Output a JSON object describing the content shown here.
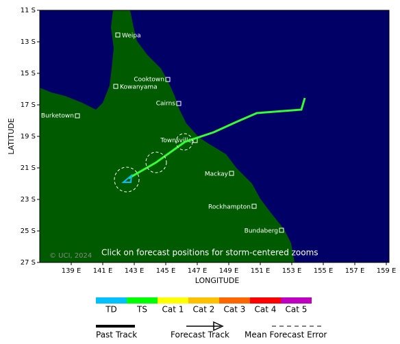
{
  "map": {
    "lat_ticks": [
      "11 S",
      "13 S",
      "15 S",
      "17 S",
      "19 S",
      "21 S",
      "23 S",
      "25 S",
      "27 S"
    ],
    "lon_ticks": [
      "139 E",
      "141 E",
      "143 E",
      "145 E",
      "147 E",
      "149 E",
      "151 E",
      "153 E",
      "155 E",
      "157 E",
      "159 E"
    ],
    "x_label": "LONGITUDE",
    "y_label": "LATITUDE",
    "places": [
      "Weipa",
      "Cooktown",
      "Kowanyama",
      "Cairns",
      "Burketown",
      "Townsville",
      "Mackay",
      "Rockhampton",
      "Bundaberg"
    ],
    "copyright": "© UCI, 2024",
    "note": "Click on forecast positions for storm-centered zooms"
  },
  "legend": {
    "intensity": [
      {
        "label": "TD",
        "color": "#00c0ff"
      },
      {
        "label": "TS",
        "color": "#00ff00"
      },
      {
        "label": "Cat 1",
        "color": "#ffff00"
      },
      {
        "label": "Cat 2",
        "color": "#ffc000"
      },
      {
        "label": "Cat 3",
        "color": "#ff6600"
      },
      {
        "label": "Cat 4",
        "color": "#ff0000"
      },
      {
        "label": "Cat 5",
        "color": "#c000c0"
      }
    ],
    "track": [
      "Past Track",
      "Forecast Track",
      "Mean Forecast Error"
    ]
  }
}
